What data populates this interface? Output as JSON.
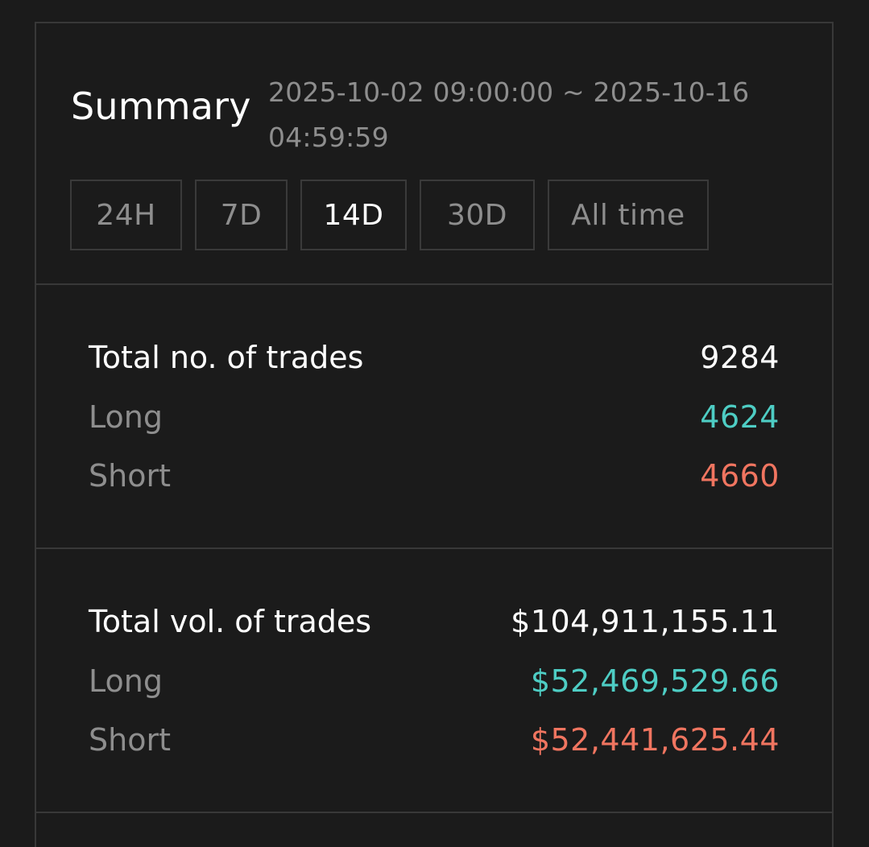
{
  "summary": {
    "title": "Summary",
    "date_range": "2025-10-02 09:00:00 ~ 2025-10-16 04:59:59"
  },
  "tabs": [
    {
      "label": "24H",
      "active": false
    },
    {
      "label": "7D",
      "active": false
    },
    {
      "label": "14D",
      "active": true
    },
    {
      "label": "30D",
      "active": false
    },
    {
      "label": "All time",
      "active": false
    }
  ],
  "trades": {
    "total_label": "Total no. of trades",
    "total_value": "9284",
    "long_label": "Long",
    "long_value": "4624",
    "short_label": "Short",
    "short_value": "4660"
  },
  "volume": {
    "total_label": "Total vol. of trades",
    "total_value": "$104,911,155.11",
    "long_label": "Long",
    "long_value": "$52,469,529.66",
    "short_label": "Short",
    "short_value": "$52,441,625.44"
  },
  "colors": {
    "background": "#1b1b1b",
    "border": "#383838",
    "text_primary": "#ffffff",
    "text_muted": "#8e8e8e",
    "long": "#4ecdc4",
    "short": "#f07560"
  }
}
